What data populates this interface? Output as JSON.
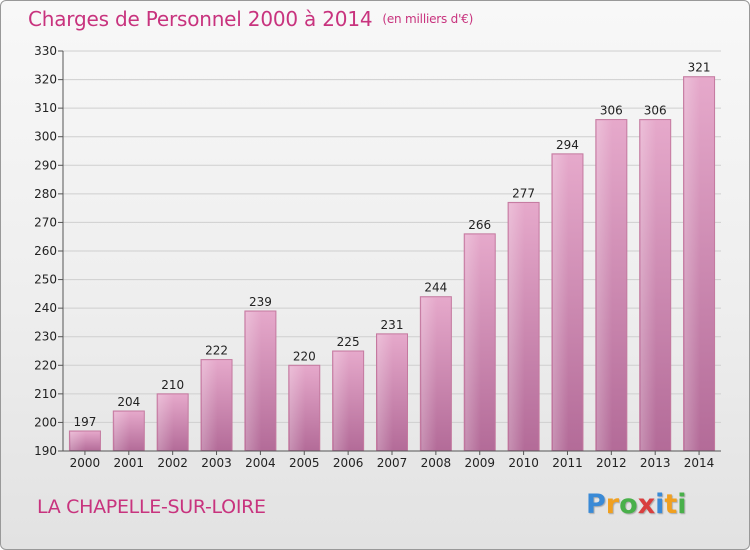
{
  "chart_data": {
    "type": "bar",
    "title": "Charges de Personnel 2000 à 2014",
    "subtitle": "(en milliers d'€)",
    "categories": [
      "2000",
      "2001",
      "2002",
      "2003",
      "2004",
      "2005",
      "2006",
      "2007",
      "2008",
      "2009",
      "2010",
      "2011",
      "2012",
      "2013",
      "2014"
    ],
    "values": [
      197,
      204,
      210,
      222,
      239,
      220,
      225,
      231,
      244,
      266,
      277,
      294,
      306,
      306,
      321
    ],
    "ylim": [
      190,
      330
    ],
    "ytick_step": 10,
    "xlabel": "",
    "ylabel": "",
    "grid": true,
    "bar_color": "#d98bb6"
  },
  "commune": "LA CHAPELLE-SUR-LOIRE",
  "logo": {
    "letters": [
      "P",
      "r",
      "o",
      "x",
      "i",
      "t",
      "i"
    ],
    "colors": [
      "#3a8ad6",
      "#f0a020",
      "#49b04a",
      "#d93f3f",
      "#3a8ad6",
      "#f0a020",
      "#49b04a"
    ]
  }
}
